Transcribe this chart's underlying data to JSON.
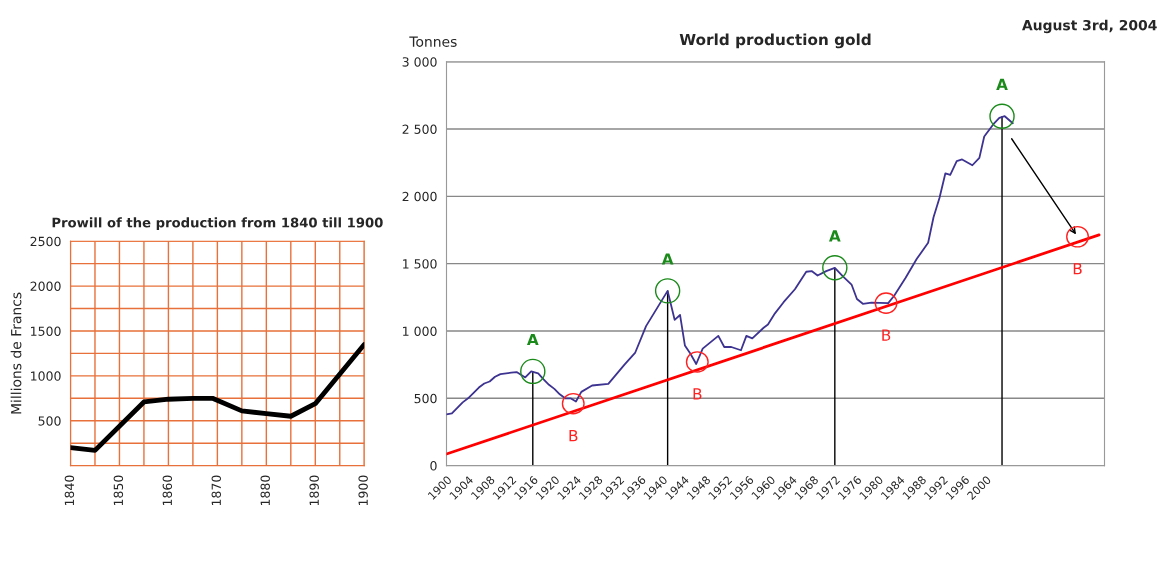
{
  "chart_data": [
    {
      "type": "line",
      "title": "World production gold",
      "ylabel": "Tonnes",
      "series": [
        {
          "type": "line",
          "color": "#3d3391",
          "x": [
            1900,
            1901,
            1903,
            1904,
            1906,
            1907,
            1908,
            1909,
            1910,
            1912,
            1913,
            1914.6,
            1915.7,
            1917,
            1918,
            1919,
            1920,
            1921,
            1922,
            1923,
            1924,
            1925,
            1927,
            1930,
            1933,
            1935,
            1937,
            1941,
            1942.3,
            1943.3,
            1944.2,
            1945.2,
            1946.3,
            1947.5,
            1950.4,
            1951.5,
            1952.8,
            1954.6,
            1955.6,
            1956.7,
            1958.8,
            1959.6,
            1960.9,
            1962.5,
            1964.6,
            1966.7,
            1967.7,
            1968.8,
            1970.4,
            1972,
            1973.5,
            1975.1,
            1976.1,
            1977.2,
            1978.8,
            1981.9,
            1983,
            1985.1,
            1987.2,
            1989.3,
            1990.3,
            1991.4,
            1992.5,
            1993.4,
            1994.6,
            1995.6,
            1997.5,
            1998.8,
            1999.7,
            2001.4,
            2002.5,
            2003.5,
            2005
          ],
          "values": [
            381,
            388,
            470,
            500,
            580,
            610,
            625,
            660,
            680,
            690,
            695,
            655,
            700,
            685,
            640,
            600,
            570,
            530,
            500,
            500,
            476,
            548,
            595,
            607,
            750,
            840,
            1036,
            1298,
            1083,
            1119,
            893,
            833,
            755,
            869,
            964,
            881,
            881,
            857,
            964,
            945,
            1024,
            1048,
            1131,
            1214,
            1310,
            1440,
            1445,
            1412,
            1445,
            1469,
            1405,
            1345,
            1238,
            1202,
            1210,
            1207,
            1262,
            1393,
            1536,
            1655,
            1845,
            1988,
            2171,
            2160,
            2262,
            2274,
            2231,
            2286,
            2445,
            2536,
            2583,
            2595,
            2543
          ]
        },
        {
          "type": "line",
          "color": "#ff0000",
          "x": [
            1900,
            2021
          ],
          "values": [
            86,
            1714
          ]
        },
        {
          "type": "lollipop",
          "color": "#1a8a1a",
          "marker": "circle",
          "x": [
            1916,
            1941,
            1972,
            2003
          ],
          "values": [
            700,
            1298,
            1469,
            2595
          ]
        }
      ],
      "xlim": [
        1900,
        2022
      ],
      "xticks": [
        1900,
        1904,
        1908,
        1912,
        1916,
        1920,
        1924,
        1928,
        1932,
        1936,
        1940,
        1944,
        1948,
        1952,
        1956,
        1960,
        1964,
        1968,
        1972,
        1976,
        1980,
        1984,
        1988,
        1992,
        1996,
        2000
      ],
      "ylim": [
        0,
        3000
      ],
      "yticks": [
        {
          "value": 0,
          "label": "0"
        },
        {
          "value": 500,
          "label": "500"
        },
        {
          "value": 1000,
          "label": "1 000"
        },
        {
          "value": 1500,
          "label": "1 500"
        },
        {
          "value": 2000,
          "label": "2 000"
        },
        {
          "value": 2500,
          "label": "2 500"
        },
        {
          "value": 3000,
          "label": "3 000"
        }
      ],
      "grid": "y",
      "annotations": [
        "August 3rd, 2004",
        {
          "text": "A",
          "x": 1916,
          "y": 700
        },
        {
          "text": "B",
          "x": 1923.5,
          "y": 460
        },
        {
          "text": "A",
          "x": 1941,
          "y": 1298
        },
        {
          "text": "B",
          "x": 1946.5,
          "y": 770
        },
        {
          "text": "A",
          "x": 1972,
          "y": 1469
        },
        {
          "text": "B",
          "x": 1981.5,
          "y": 1207
        },
        {
          "text": "A",
          "x": 2003,
          "y": 2595
        },
        {
          "text": "B",
          "x": 2017,
          "y": 1700
        }
      ]
    },
    {
      "type": "line",
      "title": "Prowill of the production from 1840 till 1900",
      "ylabel": "Millions de Francs",
      "series": [
        {
          "color": "#000000",
          "x": [
            1840,
            1845,
            1855,
            1860,
            1865,
            1869,
            1875,
            1880,
            1885,
            1890,
            1900
          ],
          "values": [
            200,
            170,
            710,
            740,
            750,
            750,
            610,
            580,
            550,
            690,
            1350
          ]
        }
      ],
      "xlim": [
        1840,
        1900
      ],
      "xticks": [
        1840,
        {
          "value": 1845,
          "label": null
        },
        1850,
        {
          "value": 1855,
          "label": null
        },
        1860,
        {
          "value": 1865,
          "label": null
        },
        1870,
        {
          "value": 1875,
          "label": null
        },
        1880,
        {
          "value": 1885,
          "label": null
        },
        1890,
        {
          "value": 1895,
          "label": null
        },
        1900
      ],
      "ylim": [
        0,
        2500
      ],
      "yticks": [
        {
          "value": 0,
          "label": null
        },
        {
          "value": 250,
          "label": null
        },
        500,
        {
          "value": 750,
          "label": null
        },
        1000,
        {
          "value": 1250,
          "label": null
        },
        1500,
        {
          "value": 1750,
          "label": null
        },
        2000,
        {
          "value": 2250,
          "label": null
        },
        2500
      ],
      "grid": true
    }
  ]
}
